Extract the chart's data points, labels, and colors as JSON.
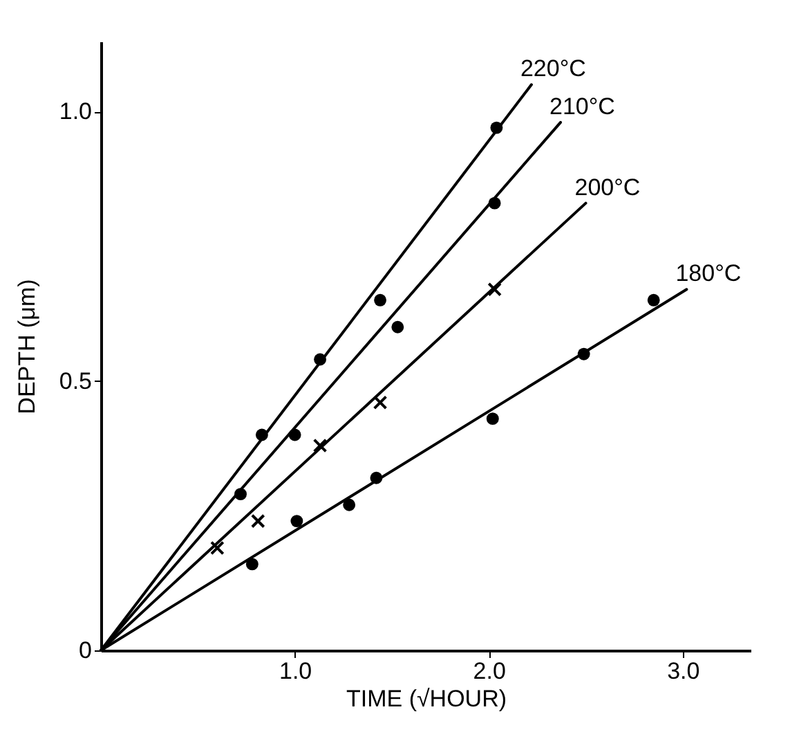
{
  "chart_data": {
    "type": "scatter",
    "xlabel": "TIME (√HOUR)",
    "ylabel": "DEPTH (μm)",
    "xlim": [
      0,
      3.35
    ],
    "ylim": [
      0,
      1.13
    ],
    "xticks": [
      {
        "value": 1,
        "label": "1.0"
      },
      {
        "value": 2,
        "label": "2.0"
      },
      {
        "value": 3,
        "label": "3.0"
      }
    ],
    "yticks": [
      0,
      {
        "value": 0.5,
        "label": "0.5"
      },
      {
        "value": 1,
        "label": "1.0"
      }
    ],
    "grid": false,
    "series": [
      {
        "name": "220°C",
        "type": "line",
        "marker": "none",
        "color": "#000000",
        "x": [
          0,
          2.22
        ],
        "values": [
          0,
          1.05
        ]
      },
      {
        "name": "210°C",
        "type": "line",
        "marker": "none",
        "color": "#000000",
        "x": [
          0,
          2.37
        ],
        "values": [
          0,
          0.98
        ]
      },
      {
        "name": "200°C",
        "type": "line",
        "marker": "none",
        "color": "#000000",
        "x": [
          0,
          2.5
        ],
        "values": [
          0,
          0.83
        ]
      },
      {
        "name": "180°C",
        "type": "line",
        "marker": "none",
        "color": "#000000",
        "x": [
          0,
          3.02
        ],
        "values": [
          0,
          0.67
        ]
      },
      {
        "marker": "circle",
        "color": "#000000",
        "x": [
          0.72,
          0.83,
          1.13,
          1.44,
          2.04
        ],
        "values": [
          0.29,
          0.4,
          0.54,
          0.65,
          0.97
        ]
      },
      {
        "marker": "circle",
        "color": "#000000",
        "x": [
          1.0,
          1.53,
          2.03
        ],
        "values": [
          0.4,
          0.6,
          0.83
        ]
      },
      {
        "marker": "cross",
        "color": "#000000",
        "x": [
          0.6,
          0.81,
          1.13,
          1.44,
          2.03
        ],
        "values": [
          0.19,
          0.24,
          0.38,
          0.46,
          0.67
        ]
      },
      {
        "marker": "circle",
        "color": "#000000",
        "x": [
          0.78,
          1.01,
          1.28,
          1.42,
          2.02,
          2.49,
          2.85
        ],
        "values": [
          0.16,
          0.24,
          0.27,
          0.32,
          0.43,
          0.55,
          0.65
        ]
      }
    ]
  }
}
